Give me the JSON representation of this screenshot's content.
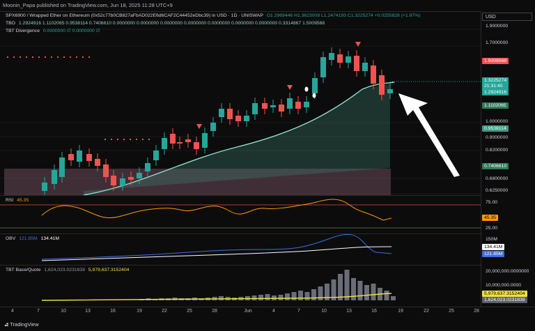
{
  "header": {
    "published": "Moonin_Papa published on TradingView.com, Jun 18, 2025 11:28 UTC+9"
  },
  "main_legend": {
    "symbol": "SPX6900 / Wrapped Ether on Ethereum (0x52c77b0CB827aFbAD022E6d6CAF2C44452eDbc39) in USD · 1D · UNISWAP",
    "ohlc": "O1.2969446  H1.3623008  L1.2474193  C1.3225274  +0.0255828 (+1.97%)",
    "tbo_label": "TBO",
    "tbo_values": "1.2924916  1.1102065  0.9538114  0.7406610  0.0000000  0.0000000  0.0000000  0.0000000  0.0000000  0.0000000  0.0000000  0.3314867  1.5009568",
    "div_label": "TBT Divergence",
    "div_values": "0.0000000  ∅  0.0000000  ∅"
  },
  "currency": "USD",
  "price_ticks": [
    "1.9000000",
    "1.7000000",
    "1.0000000",
    "0.9000000",
    "0.8200000",
    "0.6800000",
    "0.6250000"
  ],
  "price_tags": {
    "red": "1.5009568",
    "last": "1.3225274",
    "countdown": "21:31:40",
    "tbo1": "1.2924916",
    "tbo2": "1.1102065",
    "tbo3": "0.9538114",
    "tbo4": "0.7406610"
  },
  "rsi": {
    "label": "RSI",
    "value": "45.35",
    "ticks": [
      "75.00",
      "25.00"
    ]
  },
  "obv": {
    "label": "OBV",
    "v1": "121.85M",
    "v2": "134.41M",
    "tick": "150M"
  },
  "tbt": {
    "label": "TBT Base/Quote",
    "v1": "1,624,023.0231838",
    "v2": "5,979,637.3152404",
    "ticks": [
      "20,000,000.0000000",
      "10,000,000.0000"
    ]
  },
  "x_labels": [
    "4",
    "7",
    "10",
    "13",
    "16",
    "19",
    "22",
    "25",
    "28",
    "Jun",
    "4",
    "7",
    "10",
    "13",
    "16",
    "19",
    "22",
    "25",
    "28"
  ],
  "footer": {
    "brand": "TradingView"
  },
  "colors": {
    "up": "#26a69a",
    "down": "#ef5350",
    "bg": "#0c0c0c",
    "rsi": "#ff9800",
    "obv": "#3f6fe0",
    "yellow": "#f0e040"
  }
}
